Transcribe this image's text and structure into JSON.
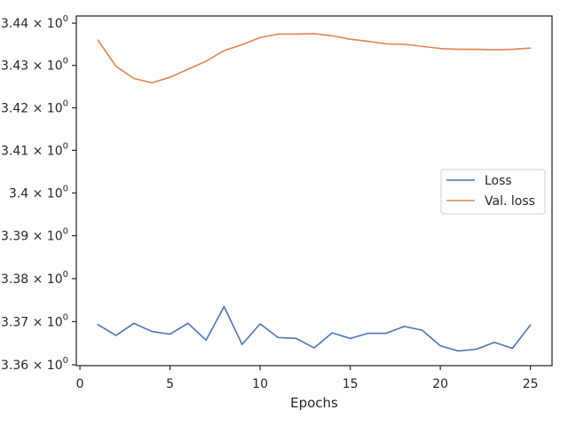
{
  "chart_data": {
    "type": "line",
    "xlabel": "Epochs",
    "ylabel": "",
    "title": "",
    "xlim": [
      -0.2,
      26.2
    ],
    "ylim": [
      3.3598,
      3.4417
    ],
    "x_ticks": [
      {
        "value": 0,
        "label": "0"
      },
      {
        "value": 5,
        "label": "5"
      },
      {
        "value": 10,
        "label": "10"
      },
      {
        "value": 15,
        "label": "15"
      },
      {
        "value": 20,
        "label": "20"
      },
      {
        "value": 25,
        "label": "25"
      }
    ],
    "y_ticks": [
      {
        "value": 3.36,
        "base": "3.36 × 10",
        "exp": "0"
      },
      {
        "value": 3.37,
        "base": "3.37 × 10",
        "exp": "0"
      },
      {
        "value": 3.38,
        "base": "3.38 × 10",
        "exp": "0"
      },
      {
        "value": 3.39,
        "base": "3.39 × 10",
        "exp": "0"
      },
      {
        "value": 3.4,
        "base": "3.4 × 10",
        "exp": "0"
      },
      {
        "value": 3.41,
        "base": "3.41 × 10",
        "exp": "0"
      },
      {
        "value": 3.42,
        "base": "3.42 × 10",
        "exp": "0"
      },
      {
        "value": 3.43,
        "base": "3.43 × 10",
        "exp": "0"
      },
      {
        "value": 3.44,
        "base": "3.44 × 10",
        "exp": "0"
      }
    ],
    "log_scale_y": true,
    "grid": false,
    "legend_position": "center-right",
    "x": [
      1,
      2,
      3,
      4,
      5,
      6,
      7,
      8,
      9,
      10,
      11,
      12,
      13,
      14,
      15,
      16,
      17,
      18,
      19,
      20,
      21,
      22,
      23,
      24,
      25
    ],
    "series": [
      {
        "name": "Loss",
        "color": "#4c72b0",
        "values": [
          3.3693,
          3.3668,
          3.3696,
          3.3677,
          3.3671,
          3.3696,
          3.3657,
          3.3735,
          3.3647,
          3.3695,
          3.3663,
          3.3661,
          3.3639,
          3.3674,
          3.3661,
          3.3673,
          3.3673,
          3.3689,
          3.368,
          3.3644,
          3.3632,
          3.3636,
          3.3652,
          3.3638,
          3.3692
        ]
      },
      {
        "name": "Val. loss",
        "color": "#dd8452",
        "values": [
          3.436,
          3.4298,
          3.4269,
          3.4259,
          3.4272,
          3.4291,
          3.431,
          3.4335,
          3.4349,
          3.4366,
          3.4374,
          3.4374,
          3.4375,
          3.437,
          3.4362,
          3.4357,
          3.4351,
          3.435,
          3.4345,
          3.434,
          3.4338,
          3.4338,
          3.4337,
          3.4338,
          3.4341
        ]
      }
    ]
  }
}
